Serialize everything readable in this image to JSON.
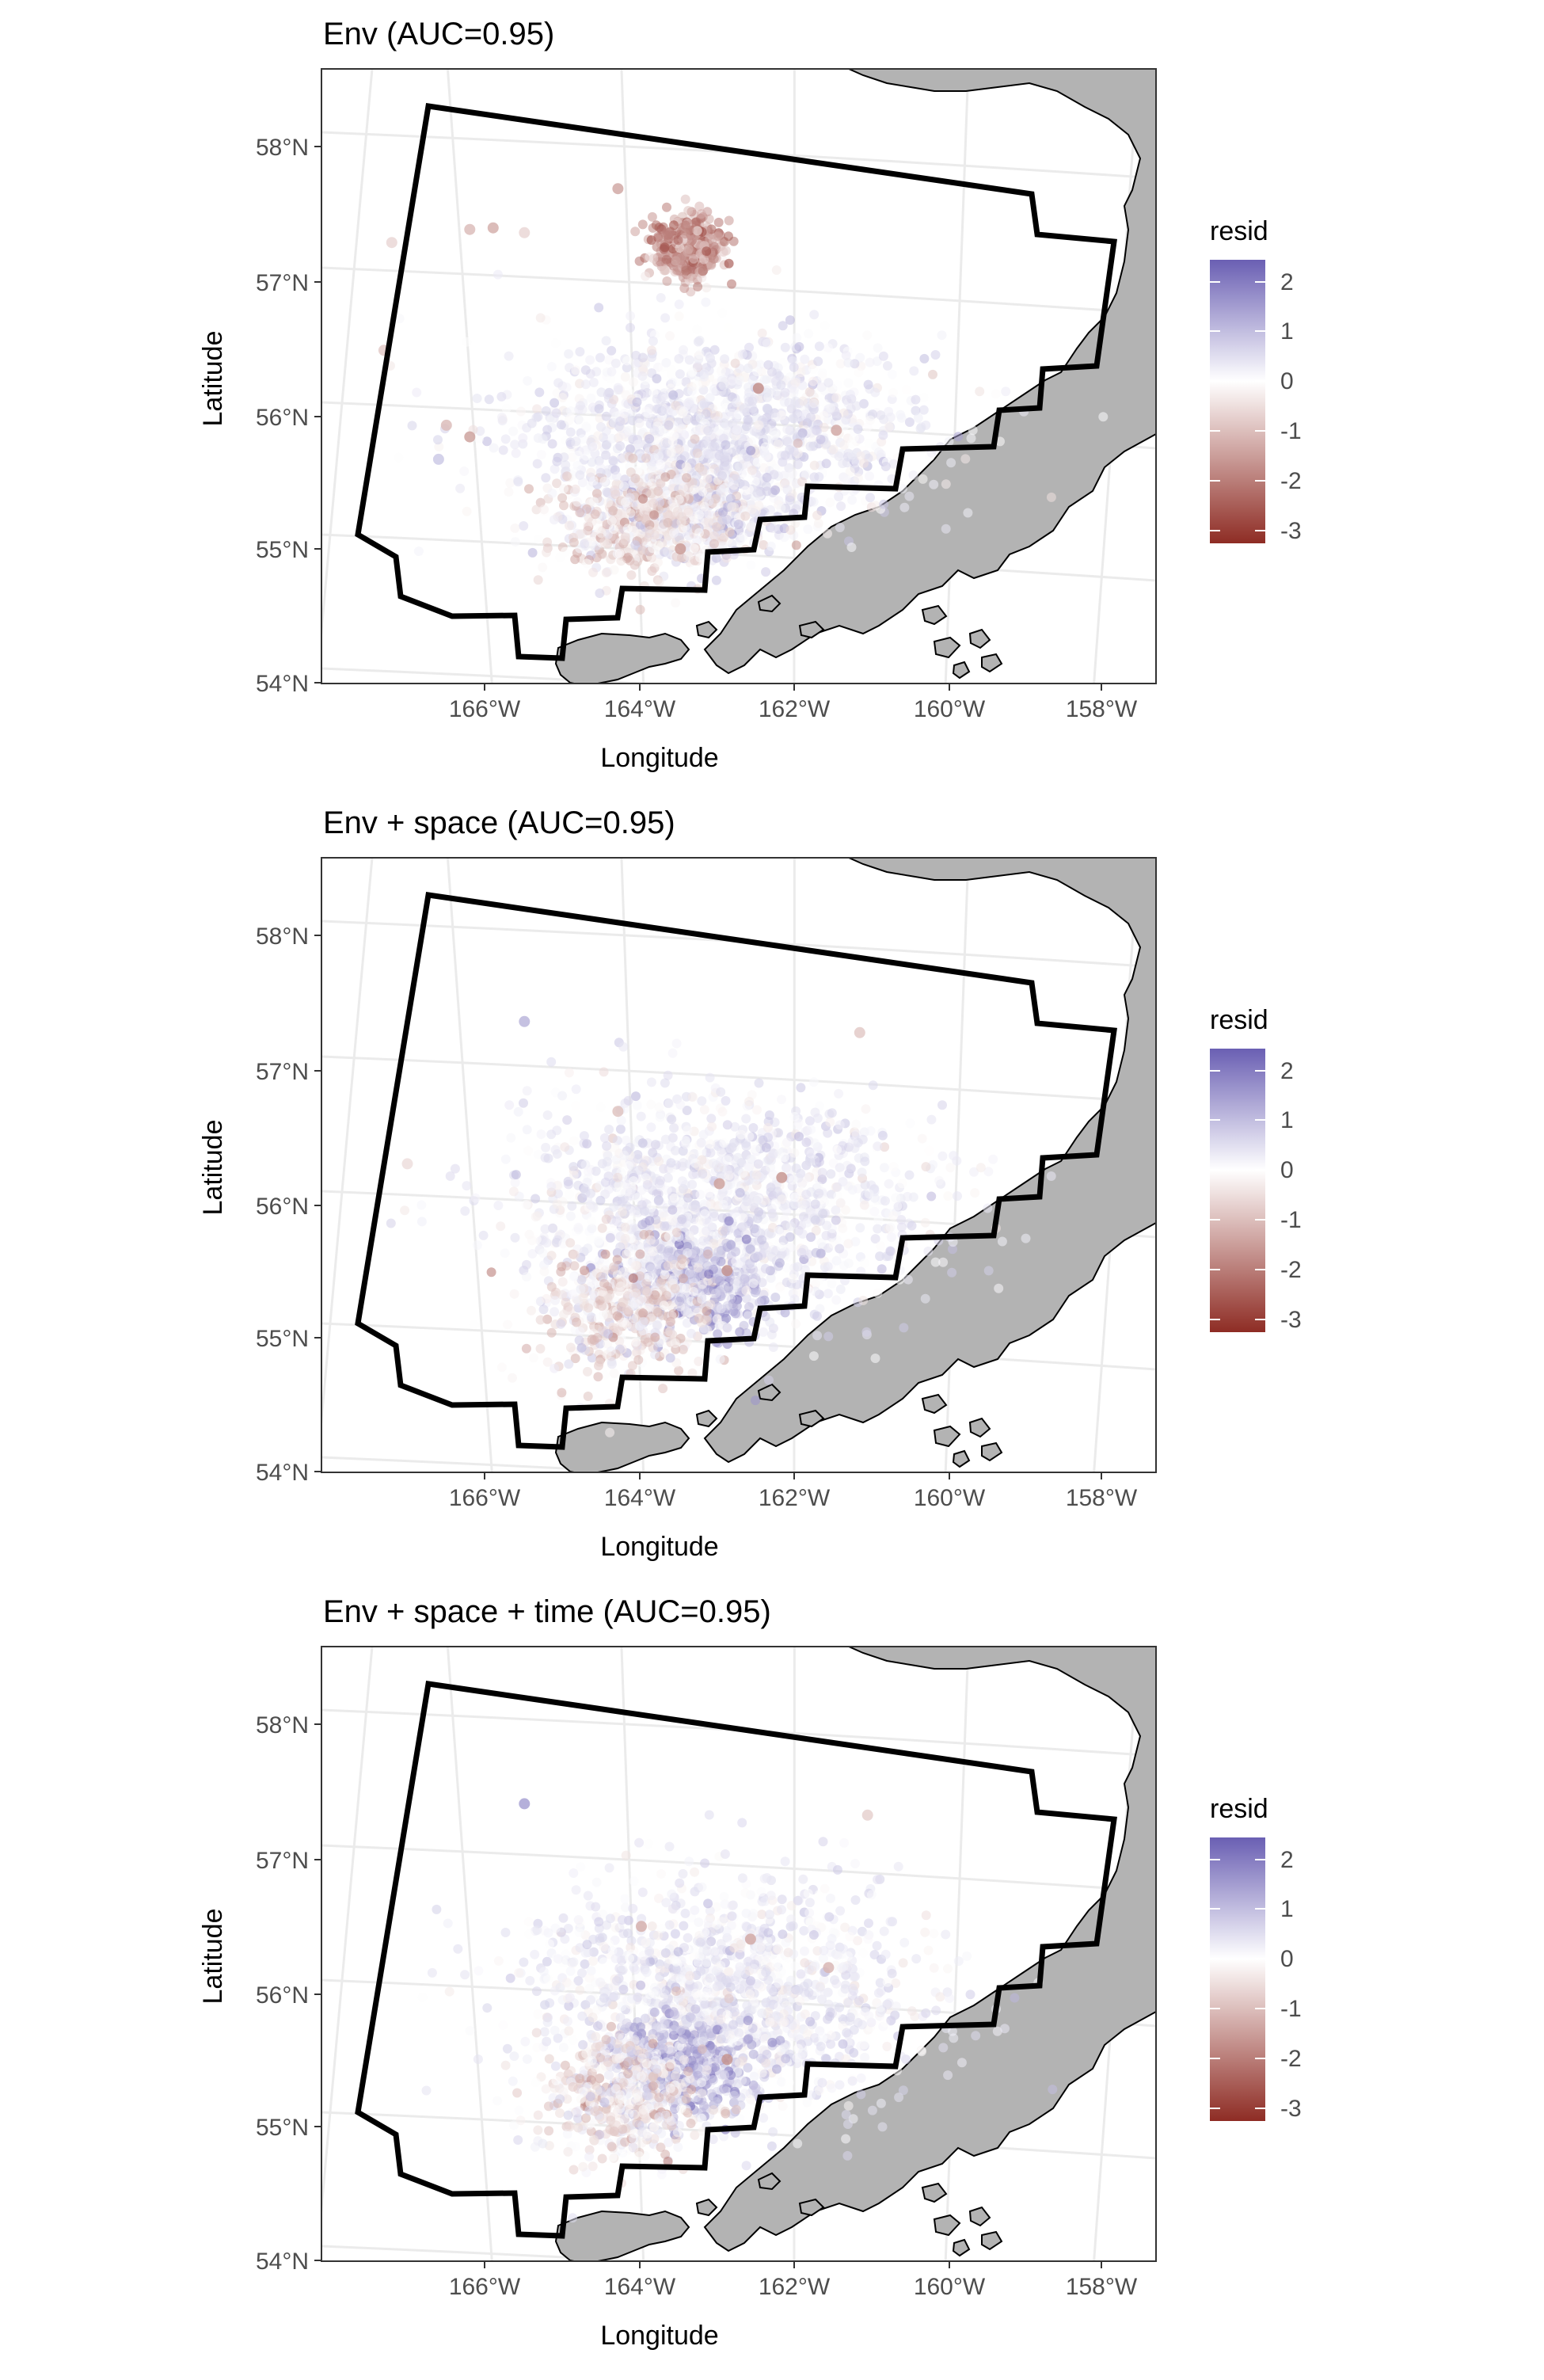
{
  "figure": {
    "panels": [
      {
        "title": "Env (AUC=0.95)"
      },
      {
        "title": "Env + space (AUC=0.95)"
      },
      {
        "title": "Env + space + time (AUC=0.95)"
      }
    ],
    "xlabel": "Longitude",
    "ylabel": "Latitude",
    "lat_ticks": [
      "58°N",
      "57°N",
      "56°N",
      "55°N",
      "54°N"
    ],
    "lon_ticks": [
      "166°W",
      "164°W",
      "162°W",
      "160°W",
      "158°W"
    ],
    "legend": {
      "title": "resid",
      "labels": [
        "2",
        "1",
        "0",
        "-1",
        "-2",
        "-3"
      ],
      "colors": {
        "high": "#6a5fb3",
        "mid": "#ffffff",
        "low": "#8e2c24"
      }
    },
    "colors": {
      "land": "#b3b3b3",
      "boundary": "#000000",
      "grid": "#ebebeb"
    }
  },
  "chart_data": {
    "type": "scatter",
    "description_units": "longitude (°W negative), latitude (°N)",
    "panels": [
      {
        "title": "Env (AUC=0.95)",
        "xlabel": "Longitude",
        "ylabel": "Latitude",
        "xlim": [
          -167.5,
          -157.3
        ],
        "ylim": [
          54.0,
          58.4
        ],
        "color_variable": "resid",
        "color_range": [
          -3.2,
          2.4
        ],
        "clusters": [
          {
            "lon": -163.0,
            "lat": 55.9,
            "lon_sd": 1.3,
            "lat_sd": 0.35,
            "resid": 0.3
          },
          {
            "lon": -163.2,
            "lat": 55.3,
            "lon_sd": 0.6,
            "lat_sd": 0.2,
            "resid": 0.2
          },
          {
            "lon": -163.4,
            "lat": 57.25,
            "lon_sd": 0.2,
            "lat_sd": 0.12,
            "resid": -1.6
          },
          {
            "lon": -164.0,
            "lat": 55.2,
            "lon_sd": 0.5,
            "lat_sd": 0.2,
            "resid": -0.4
          }
        ],
        "scattered_points": [
          {
            "lon": -167.2,
            "lat": 57.4,
            "resid": -0.6
          },
          {
            "lon": -166.2,
            "lat": 57.45,
            "resid": -1.0
          },
          {
            "lon": -165.9,
            "lat": 57.45,
            "resid": -1.2
          },
          {
            "lon": -165.5,
            "lat": 57.4,
            "resid": -0.6
          },
          {
            "lon": -164.3,
            "lat": 57.7,
            "resid": -1.3
          },
          {
            "lon": -167.3,
            "lat": 56.6,
            "resid": -0.8
          },
          {
            "lon": -166.5,
            "lat": 56.0,
            "resid": -1.0
          },
          {
            "lon": -166.2,
            "lat": 55.9,
            "resid": -1.4
          },
          {
            "lon": -166.6,
            "lat": 55.75,
            "resid": 0.8
          },
          {
            "lon": -162.5,
            "lat": 56.2,
            "resid": -1.7
          },
          {
            "lon": -161.5,
            "lat": 55.9,
            "resid": -1.3
          },
          {
            "lon": -163.5,
            "lat": 55.0,
            "resid": -1.5
          }
        ]
      },
      {
        "title": "Env + space (AUC=0.95)",
        "xlabel": "Longitude",
        "ylabel": "Latitude",
        "xlim": [
          -167.5,
          -157.3
        ],
        "ylim": [
          54.0,
          58.4
        ],
        "color_variable": "resid",
        "color_range": [
          -3.2,
          2.4
        ],
        "clusters": [
          {
            "lon": -163.0,
            "lat": 56.0,
            "lon_sd": 1.3,
            "lat_sd": 0.4,
            "resid": 0.3
          },
          {
            "lon": -163.3,
            "lat": 55.4,
            "lon_sd": 0.5,
            "lat_sd": 0.2,
            "resid": 0.9
          },
          {
            "lon": -164.2,
            "lat": 55.2,
            "lon_sd": 0.5,
            "lat_sd": 0.25,
            "resid": -0.4
          }
        ],
        "scattered_points": [
          {
            "lon": -165.5,
            "lat": 57.4,
            "resid": 1.1
          },
          {
            "lon": -164.3,
            "lat": 56.7,
            "resid": -0.9
          },
          {
            "lon": -163.0,
            "lat": 56.15,
            "resid": -1.4
          },
          {
            "lon": -162.2,
            "lat": 56.2,
            "resid": -1.6
          },
          {
            "lon": -161.2,
            "lat": 57.3,
            "resid": -0.8
          },
          {
            "lon": -162.9,
            "lat": 55.5,
            "resid": -1.6
          },
          {
            "lon": -167.0,
            "lat": 56.4,
            "resid": -0.5
          }
        ]
      },
      {
        "title": "Env + space + time (AUC=0.95)",
        "xlabel": "Longitude",
        "ylabel": "Latitude",
        "xlim": [
          -167.5,
          -157.3
        ],
        "ylim": [
          54.0,
          58.4
        ],
        "color_variable": "resid",
        "color_range": [
          -3.2,
          2.4
        ],
        "clusters": [
          {
            "lon": -163.0,
            "lat": 56.0,
            "lon_sd": 1.3,
            "lat_sd": 0.4,
            "resid": 0.25
          },
          {
            "lon": -163.4,
            "lat": 55.45,
            "lon_sd": 0.5,
            "lat_sd": 0.2,
            "resid": 1.0
          },
          {
            "lon": -164.2,
            "lat": 55.2,
            "lon_sd": 0.5,
            "lat_sd": 0.25,
            "resid": -0.3
          }
        ],
        "scattered_points": [
          {
            "lon": -165.5,
            "lat": 57.45,
            "resid": 1.4
          },
          {
            "lon": -164.0,
            "lat": 56.5,
            "resid": -1.2
          },
          {
            "lon": -162.6,
            "lat": 56.4,
            "resid": -1.3
          },
          {
            "lon": -161.6,
            "lat": 56.2,
            "resid": -1.1
          },
          {
            "lon": -161.1,
            "lat": 57.35,
            "resid": -0.7
          },
          {
            "lon": -162.9,
            "lat": 55.5,
            "resid": -1.6
          }
        ]
      }
    ]
  }
}
